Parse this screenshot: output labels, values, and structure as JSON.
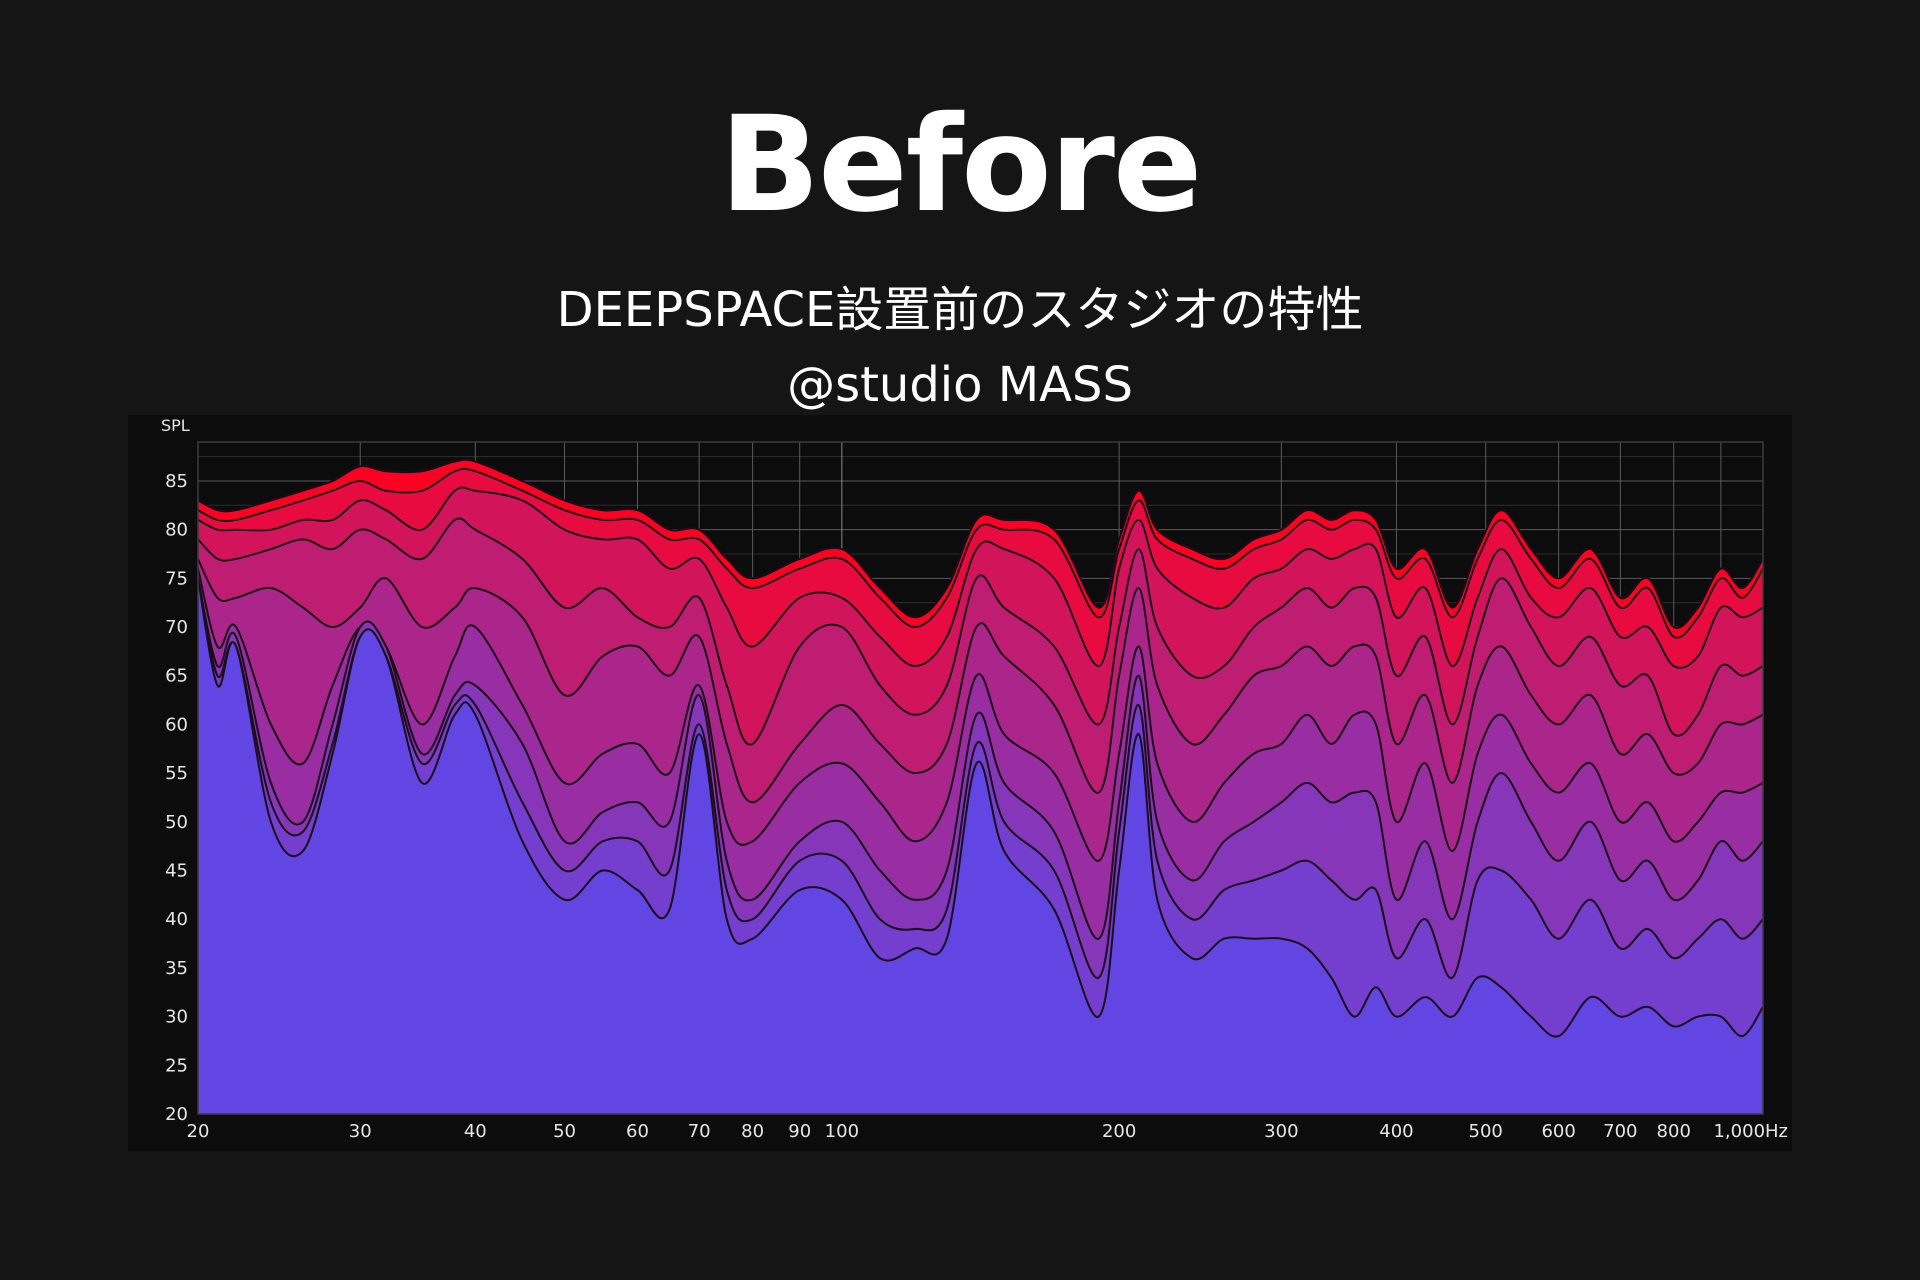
{
  "header": {
    "title": "Before",
    "subtitle": "DEEPSPACE設置前のスタジオの特性",
    "credit": "@studio MASS"
  },
  "colors": {
    "background": "#151515",
    "panel": "#0c0c0c",
    "slice_front": "#6246e4",
    "slice_back": "#ff0022",
    "outline": "#1a0c18",
    "grid": "#5a5a5a"
  },
  "chart_data": {
    "type": "area",
    "ylabel": "SPL",
    "xlabel": "",
    "x_scale": "log",
    "xlim": [
      20,
      1000
    ],
    "ylim": [
      20,
      89
    ],
    "grid": true,
    "legend": "none",
    "x_tick_labels": [
      {
        "value": 20,
        "label": "20"
      },
      {
        "value": 30,
        "label": "30"
      },
      {
        "value": 40,
        "label": "40"
      },
      {
        "value": 50,
        "label": "50"
      },
      {
        "value": 60,
        "label": "60"
      },
      {
        "value": 70,
        "label": "70"
      },
      {
        "value": 80,
        "label": "80"
      },
      {
        "value": 90,
        "label": "90"
      },
      {
        "value": 100,
        "label": "100"
      },
      {
        "value": 200,
        "label": "200"
      },
      {
        "value": 300,
        "label": "300"
      },
      {
        "value": 400,
        "label": "400"
      },
      {
        "value": 500,
        "label": "500"
      },
      {
        "value": 600,
        "label": "600"
      },
      {
        "value": 700,
        "label": "700"
      },
      {
        "value": 800,
        "label": "800"
      },
      {
        "value": 1000,
        "label": "1,000Hz"
      }
    ],
    "y_ticks": [
      20,
      25,
      30,
      35,
      40,
      45,
      50,
      55,
      60,
      65,
      70,
      75,
      80,
      85
    ],
    "x": [
      20,
      21,
      22,
      24,
      26,
      28,
      30,
      32,
      35,
      38,
      40,
      45,
      50,
      55,
      60,
      65,
      70,
      75,
      80,
      90,
      100,
      110,
      120,
      130,
      140,
      150,
      170,
      190,
      200,
      210,
      220,
      240,
      260,
      280,
      300,
      320,
      340,
      360,
      380,
      400,
      430,
      460,
      490,
      520,
      560,
      600,
      650,
      700,
      750,
      800,
      850,
      900,
      950,
      1000
    ],
    "series": [
      {
        "values": [
          83,
          82,
          82,
          83,
          84,
          85,
          86.5,
          86,
          86,
          87,
          87,
          85,
          83,
          82,
          82,
          80,
          80,
          77,
          75,
          77,
          78,
          74,
          71,
          74,
          81,
          81,
          80,
          72,
          79,
          84,
          80,
          78,
          77,
          79,
          80,
          82,
          81,
          82,
          81,
          76,
          78,
          72,
          78,
          82,
          78,
          75,
          78,
          73,
          75,
          70,
          72,
          76,
          74,
          77
        ]
      },
      {
        "values": [
          82,
          81,
          81,
          82,
          83,
          84,
          85,
          84,
          84,
          86,
          86,
          84,
          82,
          81,
          81,
          79,
          79,
          76,
          74,
          76,
          77,
          73,
          70,
          73,
          80,
          80,
          79,
          71,
          78,
          83,
          79,
          77,
          76,
          78,
          79,
          81,
          80,
          81,
          80,
          75,
          77,
          71,
          77,
          81,
          77,
          74,
          77,
          72,
          74,
          69,
          71,
          75,
          73,
          76
        ]
      },
      {
        "values": [
          81,
          80,
          80,
          80,
          81,
          81,
          83,
          82,
          80,
          84,
          84,
          83,
          80,
          79,
          79,
          76,
          77,
          72,
          68,
          73,
          73,
          69,
          66,
          69,
          78,
          78,
          75,
          66,
          76,
          81,
          76,
          73,
          72,
          75,
          76,
          78,
          77,
          78,
          78,
          71,
          74,
          66,
          73,
          78,
          73,
          71,
          74,
          69,
          70,
          66,
          67,
          72,
          71,
          72
        ]
      },
      {
        "values": [
          79,
          77,
          77,
          78,
          79,
          78,
          80,
          79,
          77,
          81,
          80,
          77,
          72,
          74,
          71,
          70,
          73,
          64,
          58,
          68,
          70,
          64,
          61,
          64,
          75,
          72,
          68,
          60,
          70,
          78,
          70,
          65,
          66,
          70,
          72,
          74,
          72,
          74,
          73,
          65,
          69,
          60,
          69,
          75,
          70,
          66,
          69,
          64,
          65,
          59,
          61,
          66,
          65,
          66
        ]
      },
      {
        "values": [
          77,
          73,
          73,
          74,
          72,
          70,
          72,
          75,
          70,
          72,
          74,
          71,
          63,
          67,
          68,
          65,
          69,
          58,
          52,
          58,
          62,
          58,
          55,
          58,
          70,
          67,
          62,
          53,
          65,
          74,
          64,
          58,
          61,
          65,
          66,
          68,
          66,
          68,
          67,
          58,
          63,
          54,
          64,
          68,
          63,
          60,
          63,
          57,
          59,
          55,
          56,
          60,
          60,
          61
        ]
      },
      {
        "values": [
          76,
          68,
          70,
          60,
          56,
          64,
          70,
          68,
          60,
          67,
          70,
          62,
          54,
          57,
          58,
          55,
          64,
          50,
          48,
          54,
          56,
          52,
          48,
          52,
          65,
          59,
          55,
          46,
          57,
          68,
          56,
          50,
          54,
          57,
          58,
          61,
          58,
          61,
          60,
          50,
          56,
          47,
          57,
          61,
          56,
          53,
          56,
          50,
          52,
          48,
          50,
          53,
          53,
          54
        ]
      },
      {
        "values": [
          75,
          66,
          69,
          54,
          50,
          60,
          70,
          68,
          57,
          63,
          64,
          58,
          48,
          51,
          52,
          50,
          63,
          46,
          42,
          48,
          50,
          45,
          42,
          45,
          61,
          54,
          49,
          38,
          52,
          65,
          50,
          44,
          48,
          50,
          52,
          54,
          52,
          53,
          52,
          42,
          48,
          40,
          50,
          55,
          50,
          46,
          50,
          44,
          46,
          42,
          44,
          48,
          46,
          48
        ]
      },
      {
        "values": [
          75,
          65,
          68,
          52,
          49,
          58,
          69,
          67,
          56,
          62,
          62,
          52,
          45,
          48,
          48,
          45,
          60,
          43,
          40,
          46,
          46,
          40,
          39,
          41,
          58,
          50,
          45,
          34,
          49,
          62,
          46,
          40,
          43,
          44,
          45,
          46,
          44,
          42,
          43,
          36,
          40,
          34,
          44,
          45,
          42,
          38,
          42,
          37,
          39,
          36,
          38,
          40,
          38,
          40
        ]
      },
      {
        "values": [
          75,
          64,
          68,
          50,
          47,
          57,
          69,
          67,
          54,
          61,
          61,
          48,
          42,
          45,
          43,
          41,
          59,
          40,
          38,
          43,
          42,
          36,
          37,
          38,
          56,
          47,
          41,
          30,
          45,
          59,
          42,
          36,
          38,
          38,
          38,
          37,
          34,
          30,
          33,
          30,
          32,
          30,
          34,
          33,
          30,
          28,
          32,
          30,
          31,
          29,
          30,
          30,
          28,
          31
        ]
      }
    ]
  }
}
